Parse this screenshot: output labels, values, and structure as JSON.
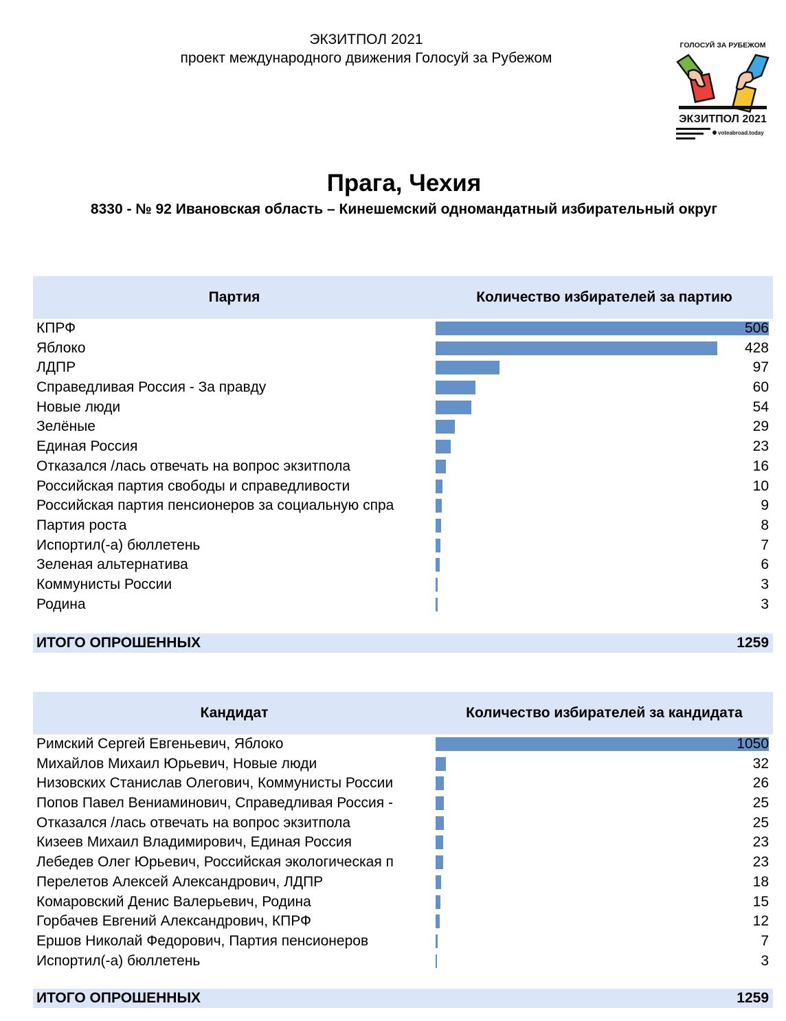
{
  "header": {
    "line1": "ЭКЗИТПОЛ 2021",
    "line2": "проект международного движения Голосуй за Рубежом"
  },
  "logo": {
    "top_text": "ГОЛОСУЙ ЗА РУБЕЖОМ",
    "bottom_text": "ЭКЗИТПОЛ 2021",
    "site": "voteabroad.today",
    "colors": {
      "red": "#e8433a",
      "yellow": "#f7c531",
      "blue": "#3aa7e6",
      "green": "#77b543"
    }
  },
  "title": "Прага, Чехия",
  "subtitle": "8330 - № 92 Ивановская область – Кинешемский одномандатный избирательный округ",
  "parties": {
    "col1": "Партия",
    "col2": "Количество избирателей за партию",
    "rows": [
      {
        "label": "КПРФ",
        "value": 506
      },
      {
        "label": "Яблоко",
        "value": 428
      },
      {
        "label": "ЛДПР",
        "value": 97
      },
      {
        "label": "Справедливая Россия - За правду",
        "value": 60
      },
      {
        "label": "Новые люди",
        "value": 54
      },
      {
        "label": "Зелёные",
        "value": 29
      },
      {
        "label": "Единая Россия",
        "value": 23
      },
      {
        "label": "Отказался /лась отвечать на вопрос экзитпола",
        "value": 16
      },
      {
        "label": "Российская партия свободы и справедливости",
        "value": 10
      },
      {
        "label": "Российская партия пенсионеров за социальную спра",
        "value": 9
      },
      {
        "label": "Партия роста",
        "value": 8
      },
      {
        "label": "Испортил(-а) бюллетень",
        "value": 7
      },
      {
        "label": "Зеленая альтернатива",
        "value": 6
      },
      {
        "label": "Коммунисты России",
        "value": 3
      },
      {
        "label": "Родина",
        "value": 3
      }
    ],
    "total_label": "ИТОГО ОПРОШЕННЫХ",
    "total_value": "1259"
  },
  "candidates": {
    "col1": "Кандидат",
    "col2": "Количество избирателей за кандидата",
    "rows": [
      {
        "label": "Римский Сергей Евгеньевич, Яблоко",
        "value": 1050
      },
      {
        "label": "Михайлов Михаил Юрьевич, Новые люди",
        "value": 32
      },
      {
        "label": "Низовских Станислав Олегович, Коммунисты России",
        "value": 26
      },
      {
        "label": "Попов Павел Вениаминович, Справедливая Россия -",
        "value": 25
      },
      {
        "label": "Отказался /лась отвечать на вопрос экзитпола",
        "value": 25
      },
      {
        "label": "Кизеев Михаил Владимирович, Единая Россия",
        "value": 23
      },
      {
        "label": "Лебедев Олег Юрьевич, Российская экологическая п",
        "value": 23
      },
      {
        "label": "Перелетов Алексей Александрович, ЛДПР",
        "value": 18
      },
      {
        "label": "Комаровский Денис Валерьевич, Родина",
        "value": 15
      },
      {
        "label": "Горбачев Евгений Александрович, КПРФ",
        "value": 12
      },
      {
        "label": "Ершов Николай Федорович, Партия пенсионеров",
        "value": 7
      },
      {
        "label": "Испортил(-а) бюллетень",
        "value": 3
      }
    ],
    "total_label": "ИТОГО ОПРОШЕННЫХ",
    "total_value": "1259"
  },
  "chart_data": [
    {
      "type": "bar",
      "orientation": "horizontal",
      "categories": [
        "КПРФ",
        "Яблоко",
        "ЛДПР",
        "Справедливая Россия - За правду",
        "Новые люди",
        "Зелёные",
        "Единая Россия",
        "Отказался /лась отвечать на вопрос экзитпола",
        "Российская партия свободы и справедливости",
        "Российская партия пенсионеров за социальную спра",
        "Партия роста",
        "Испортил(-а) бюллетень",
        "Зеленая альтернатива",
        "Коммунисты России",
        "Родина"
      ],
      "values": [
        506,
        428,
        97,
        60,
        54,
        29,
        23,
        16,
        10,
        9,
        8,
        7,
        6,
        3,
        3
      ],
      "bar_color": "#6591c9"
    },
    {
      "type": "bar",
      "orientation": "horizontal",
      "categories": [
        "Римский Сергей Евгеньевич, Яблоко",
        "Михайлов Михаил Юрьевич, Новые люди",
        "Низовских Станислав Олегович, Коммунисты России",
        "Попов Павел Вениаминович, Справедливая Россия -",
        "Отказался /лась отвечать на вопрос экзитпола",
        "Кизеев Михаил Владимирович, Единая Россия",
        "Лебедев Олег Юрьевич, Российская экологическая п",
        "Перелетов Алексей Александрович, ЛДПР",
        "Комаровский Денис Валерьевич, Родина",
        "Горбачев Евгений Александрович, КПРФ",
        "Ершов Николай Федорович, Партия пенсионеров",
        "Испортил(-а) бюллетень"
      ],
      "values": [
        1050,
        32,
        26,
        25,
        25,
        23,
        23,
        18,
        15,
        12,
        7,
        3
      ],
      "bar_color": "#6591c9"
    }
  ]
}
